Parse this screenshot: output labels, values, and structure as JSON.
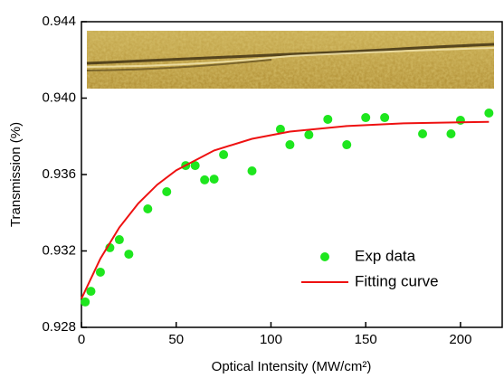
{
  "chart_data": {
    "type": "scatter",
    "x_label": "Optical Intensity (MW/cm²)",
    "y_label": "Transmission (%)",
    "xlim": [
      0,
      222
    ],
    "ylim": [
      0.928,
      0.944
    ],
    "xticks": [
      0,
      50,
      100,
      150,
      200
    ],
    "yticks": [
      0.928,
      0.932,
      0.936,
      {
        "value": 0.94,
        "label": "0.940"
      },
      0.944
    ],
    "legend": "lower right",
    "series": [
      {
        "name": "Exp data",
        "type": "scatter",
        "color": "#1ee61e",
        "x": [
          2,
          5,
          10,
          15,
          20,
          25,
          35,
          45,
          55,
          60,
          65,
          70,
          75,
          90,
          105,
          110,
          120,
          130,
          140,
          150,
          160,
          180,
          195,
          200,
          215
        ],
        "values": [
          0.92933,
          0.92989,
          0.93089,
          0.93217,
          0.93259,
          0.93183,
          0.9342,
          0.9351,
          0.93647,
          0.93647,
          0.93572,
          0.93576,
          0.93704,
          0.93619,
          0.93837,
          0.93756,
          0.93808,
          0.93889,
          0.93756,
          0.93898,
          0.93898,
          0.93813,
          0.93813,
          0.93884,
          0.93922
        ]
      },
      {
        "name": "Fitting curve",
        "type": "line",
        "color": "#ee1111",
        "x": [
          0,
          10,
          20,
          30,
          40,
          50,
          70,
          90,
          110,
          140,
          170,
          215
        ],
        "values": [
          0.9295,
          0.9316,
          0.93323,
          0.93449,
          0.93547,
          0.93622,
          0.93726,
          0.93787,
          0.93825,
          0.93854,
          0.93868,
          0.93876
        ]
      }
    ]
  }
}
